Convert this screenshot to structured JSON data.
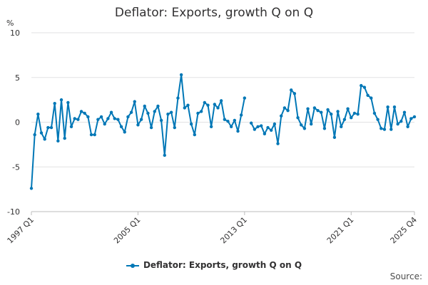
{
  "chart_data": {
    "type": "line",
    "title": "Deflator: Exports, growth Q on Q",
    "ylabel": "%",
    "xlabel": "",
    "ylim": [
      -10,
      10
    ],
    "yticks": [
      "10",
      "5",
      "0",
      "-5",
      "-10"
    ],
    "xticks": [
      "1997 Q1",
      "2005 Q1",
      "2013 Q1",
      "2021 Q1",
      "2025 Q4"
    ],
    "grid": true,
    "legend_position": "bottom",
    "source_label": "Source:",
    "color": "#0077b6",
    "series": [
      {
        "name": "Deflator: Exports, growth Q on Q",
        "x": [
          "1997 Q1",
          "1997 Q2",
          "1997 Q3",
          "1997 Q4",
          "1998 Q1",
          "1998 Q2",
          "1998 Q3",
          "1998 Q4",
          "1999 Q1",
          "1999 Q2",
          "1999 Q3",
          "1999 Q4",
          "2000 Q1",
          "2000 Q2",
          "2000 Q3",
          "2000 Q4",
          "2001 Q1",
          "2001 Q2",
          "2001 Q3",
          "2001 Q4",
          "2002 Q1",
          "2002 Q2",
          "2002 Q3",
          "2002 Q4",
          "2003 Q1",
          "2003 Q2",
          "2003 Q3",
          "2003 Q4",
          "2004 Q1",
          "2004 Q2",
          "2004 Q3",
          "2004 Q4",
          "2005 Q1",
          "2005 Q2",
          "2005 Q3",
          "2005 Q4",
          "2006 Q1",
          "2006 Q2",
          "2006 Q3",
          "2006 Q4",
          "2007 Q1",
          "2007 Q2",
          "2007 Q3",
          "2007 Q4",
          "2008 Q1",
          "2008 Q2",
          "2008 Q3",
          "2008 Q4",
          "2009 Q1",
          "2009 Q2",
          "2009 Q3",
          "2009 Q4",
          "2010 Q1",
          "2010 Q2",
          "2010 Q3",
          "2010 Q4",
          "2011 Q1",
          "2011 Q2",
          "2011 Q3",
          "2011 Q4",
          "2012 Q1",
          "2012 Q2",
          "2012 Q3",
          "2012 Q4",
          "2013 Q1",
          "2013 Q2",
          "2013 Q3",
          "2013 Q4",
          "2014 Q1",
          "2014 Q2",
          "2014 Q3",
          "2014 Q4",
          "2015 Q1",
          "2015 Q2",
          "2015 Q3",
          "2015 Q4",
          "2016 Q1",
          "2016 Q2",
          "2016 Q3",
          "2016 Q4",
          "2017 Q1",
          "2017 Q2",
          "2017 Q3",
          "2017 Q4",
          "2018 Q1",
          "2018 Q2",
          "2018 Q3",
          "2018 Q4",
          "2019 Q1",
          "2019 Q2",
          "2019 Q3",
          "2019 Q4",
          "2020 Q1",
          "2020 Q2",
          "2020 Q3",
          "2020 Q4",
          "2021 Q1",
          "2021 Q2",
          "2021 Q3",
          "2021 Q4",
          "2022 Q1",
          "2022 Q2",
          "2022 Q3",
          "2022 Q4",
          "2023 Q1",
          "2023 Q2",
          "2023 Q3",
          "2023 Q4",
          "2024 Q1",
          "2024 Q2",
          "2024 Q3",
          "2024 Q4",
          "2025 Q1",
          "2025 Q2",
          "2025 Q3",
          "2025 Q4"
        ],
        "values": [
          -7.4,
          -1.4,
          0.9,
          -1.2,
          -1.9,
          -0.6,
          -0.6,
          2.1,
          -2.1,
          2.5,
          -1.8,
          2.2,
          -0.5,
          0.4,
          0.3,
          1.2,
          1.0,
          0.6,
          -1.4,
          -1.4,
          0.3,
          0.6,
          -0.2,
          0.4,
          1.1,
          0.4,
          0.3,
          -0.5,
          -1.1,
          0.6,
          1.1,
          2.3,
          -0.3,
          0.3,
          1.8,
          1.0,
          -0.6,
          1.2,
          1.8,
          0.2,
          -3.7,
          0.9,
          1.1,
          -0.6,
          2.7,
          5.3,
          1.6,
          1.9,
          -0.2,
          -1.4,
          1.0,
          1.2,
          2.2,
          1.9,
          -0.5,
          2.0,
          1.6,
          2.4,
          0.3,
          0.1,
          -0.5,
          0.2,
          -1.0,
          0.8,
          2.7,
          null,
          -0.1,
          -0.8,
          -0.5,
          -0.4,
          -1.3,
          -0.6,
          -0.9,
          -0.2,
          -2.4,
          0.7,
          1.6,
          1.3,
          3.6,
          3.2,
          0.5,
          -0.3,
          -0.7,
          1.5,
          -0.2,
          1.6,
          1.3,
          1.1,
          -0.7,
          1.4,
          0.9,
          -1.7,
          1.2,
          -0.5,
          0.3,
          1.5,
          0.5,
          1.0,
          0.9,
          4.1,
          3.9,
          3.0,
          2.7,
          1.0,
          0.3,
          -0.7,
          -0.8,
          1.7,
          -0.8,
          1.7,
          -0.2,
          0.1,
          1.1,
          -0.5,
          0.4,
          0.6
        ]
      }
    ]
  }
}
